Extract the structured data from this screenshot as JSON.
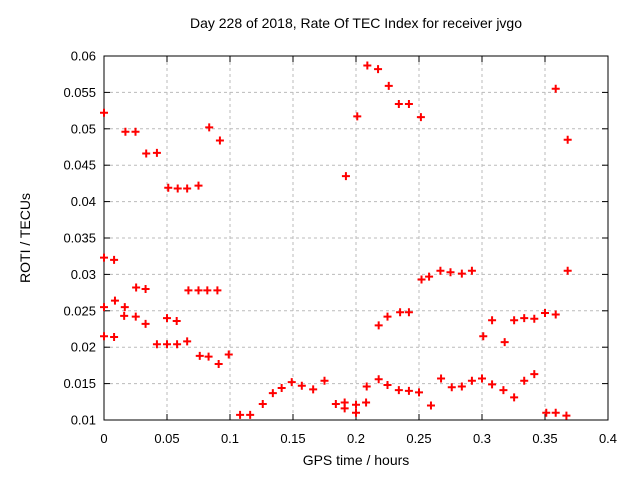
{
  "window": {
    "background": "#ffffff"
  },
  "chart_data": {
    "type": "scatter",
    "title": "Day 228 of 2018, Rate Of TEC Index for receiver jvgo",
    "xlabel": "GPS time / hours",
    "ylabel": "ROTI / TECUs",
    "xlim": [
      0,
      0.4
    ],
    "ylim": [
      0.01,
      0.06
    ],
    "xticks": [
      "0",
      "0.05",
      "0.1",
      "0.15",
      "0.2",
      "0.25",
      "0.3",
      "0.35",
      "0.4"
    ],
    "yticks": [
      "0.01",
      "0.015",
      "0.02",
      "0.025",
      "0.03",
      "0.035",
      "0.04",
      "0.045",
      "0.05",
      "0.055",
      "0.06"
    ],
    "grid": {
      "style": "dashed",
      "color": "#bbbbbb"
    },
    "legend": "none",
    "marker": "plus",
    "marker_color": "#ff0000",
    "points": [
      [
        0,
        0.0522
      ],
      [
        0.017,
        0.0496
      ],
      [
        0.025,
        0.0496
      ],
      [
        0.0335,
        0.0466
      ],
      [
        0.042,
        0.0467
      ],
      [
        0.051,
        0.0419
      ],
      [
        0.0585,
        0.0418
      ],
      [
        0.066,
        0.0418
      ],
      [
        0.075,
        0.0422
      ],
      [
        0.0835,
        0.0502
      ],
      [
        0.092,
        0.0484
      ],
      [
        0.192,
        0.0435
      ],
      [
        0.201,
        0.0517
      ],
      [
        0.209,
        0.0587
      ],
      [
        0.2175,
        0.0582
      ],
      [
        0.226,
        0.0559
      ],
      [
        0.234,
        0.0534
      ],
      [
        0.242,
        0.0534
      ],
      [
        0.2515,
        0.0516
      ],
      [
        0.3585,
        0.0555
      ],
      [
        0.368,
        0.0485
      ],
      [
        0,
        0.0323
      ],
      [
        0.008,
        0.032
      ],
      [
        0.0255,
        0.0282
      ],
      [
        0.033,
        0.028
      ],
      [
        0.0087,
        0.0264
      ],
      [
        0,
        0.0255
      ],
      [
        0.0165,
        0.0255
      ],
      [
        0.016,
        0.0243
      ],
      [
        0.0252,
        0.0242
      ],
      [
        0.033,
        0.0232
      ],
      [
        0.05,
        0.024
      ],
      [
        0.0577,
        0.0236
      ],
      [
        0.067,
        0.0278
      ],
      [
        0.075,
        0.0278
      ],
      [
        0.082,
        0.0278
      ],
      [
        0.09,
        0.0278
      ],
      [
        0,
        0.0215
      ],
      [
        0.008,
        0.0214
      ],
      [
        0.042,
        0.0204
      ],
      [
        0.05,
        0.0204
      ],
      [
        0.058,
        0.0204
      ],
      [
        0.066,
        0.0208
      ],
      [
        0.076,
        0.0188
      ],
      [
        0.083,
        0.0187
      ],
      [
        0.091,
        0.0177
      ],
      [
        0.099,
        0.019
      ],
      [
        0.108,
        0.0107
      ],
      [
        0.116,
        0.0107
      ],
      [
        0.126,
        0.0122
      ],
      [
        0.134,
        0.0137
      ],
      [
        0.141,
        0.0144
      ],
      [
        0.149,
        0.0152
      ],
      [
        0.157,
        0.0147
      ],
      [
        0.166,
        0.0142
      ],
      [
        0.175,
        0.0154
      ],
      [
        0.184,
        0.0122
      ],
      [
        0.191,
        0.0124
      ],
      [
        0.191,
        0.0116
      ],
      [
        0.2,
        0.0121
      ],
      [
        0.2,
        0.011
      ],
      [
        0.208,
        0.0124
      ],
      [
        0.2085,
        0.0146
      ],
      [
        0.218,
        0.0156
      ],
      [
        0.225,
        0.0148
      ],
      [
        0.234,
        0.0141
      ],
      [
        0.242,
        0.014
      ],
      [
        0.25,
        0.0138
      ],
      [
        0.2595,
        0.012
      ],
      [
        0.2675,
        0.0157
      ],
      [
        0.276,
        0.0145
      ],
      [
        0.284,
        0.0146
      ],
      [
        0.292,
        0.0154
      ],
      [
        0.3,
        0.0157
      ],
      [
        0.308,
        0.0149
      ],
      [
        0.317,
        0.0141
      ],
      [
        0.3255,
        0.0131
      ],
      [
        0.3335,
        0.0154
      ],
      [
        0.3415,
        0.0163
      ],
      [
        0.351,
        0.011
      ],
      [
        0.3585,
        0.011
      ],
      [
        0.367,
        0.0106
      ],
      [
        0.218,
        0.023
      ],
      [
        0.225,
        0.0242
      ],
      [
        0.235,
        0.0248
      ],
      [
        0.242,
        0.0248
      ],
      [
        0.252,
        0.0293
      ],
      [
        0.258,
        0.0297
      ],
      [
        0.267,
        0.0305
      ],
      [
        0.275,
        0.0303
      ],
      [
        0.284,
        0.0301
      ],
      [
        0.292,
        0.0305
      ],
      [
        0.301,
        0.0215
      ],
      [
        0.308,
        0.0237
      ],
      [
        0.318,
        0.0207
      ],
      [
        0.3255,
        0.0237
      ],
      [
        0.3335,
        0.024
      ],
      [
        0.3415,
        0.0239
      ],
      [
        0.35,
        0.0247
      ],
      [
        0.3585,
        0.0245
      ],
      [
        0.368,
        0.0305
      ]
    ]
  }
}
